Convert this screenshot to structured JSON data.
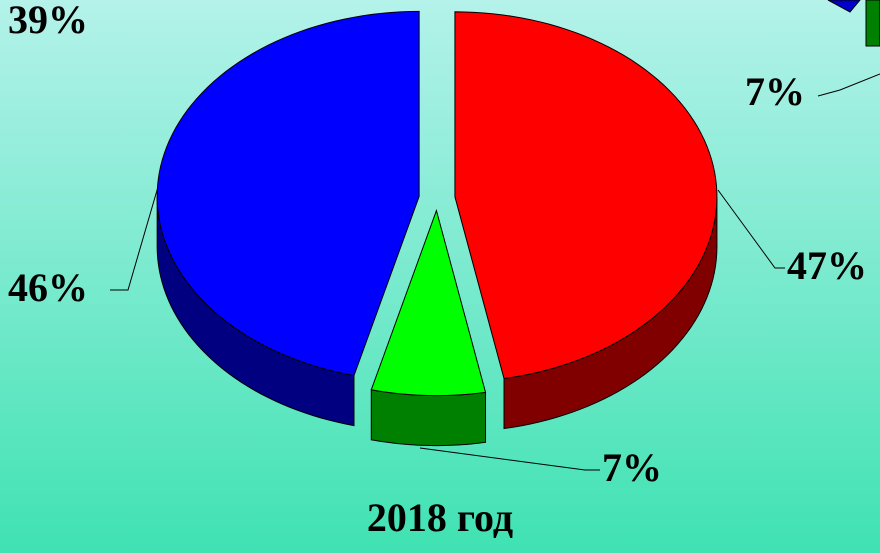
{
  "chart_data": {
    "type": "pie",
    "title": "2018 год",
    "values": [
      47,
      7,
      46
    ],
    "value_labels": [
      "47%",
      "7%",
      "46%"
    ],
    "colors": [
      "#ff0000",
      "#00ff00",
      "#0000ff"
    ],
    "annotations": [
      "39%",
      "7%"
    ]
  }
}
